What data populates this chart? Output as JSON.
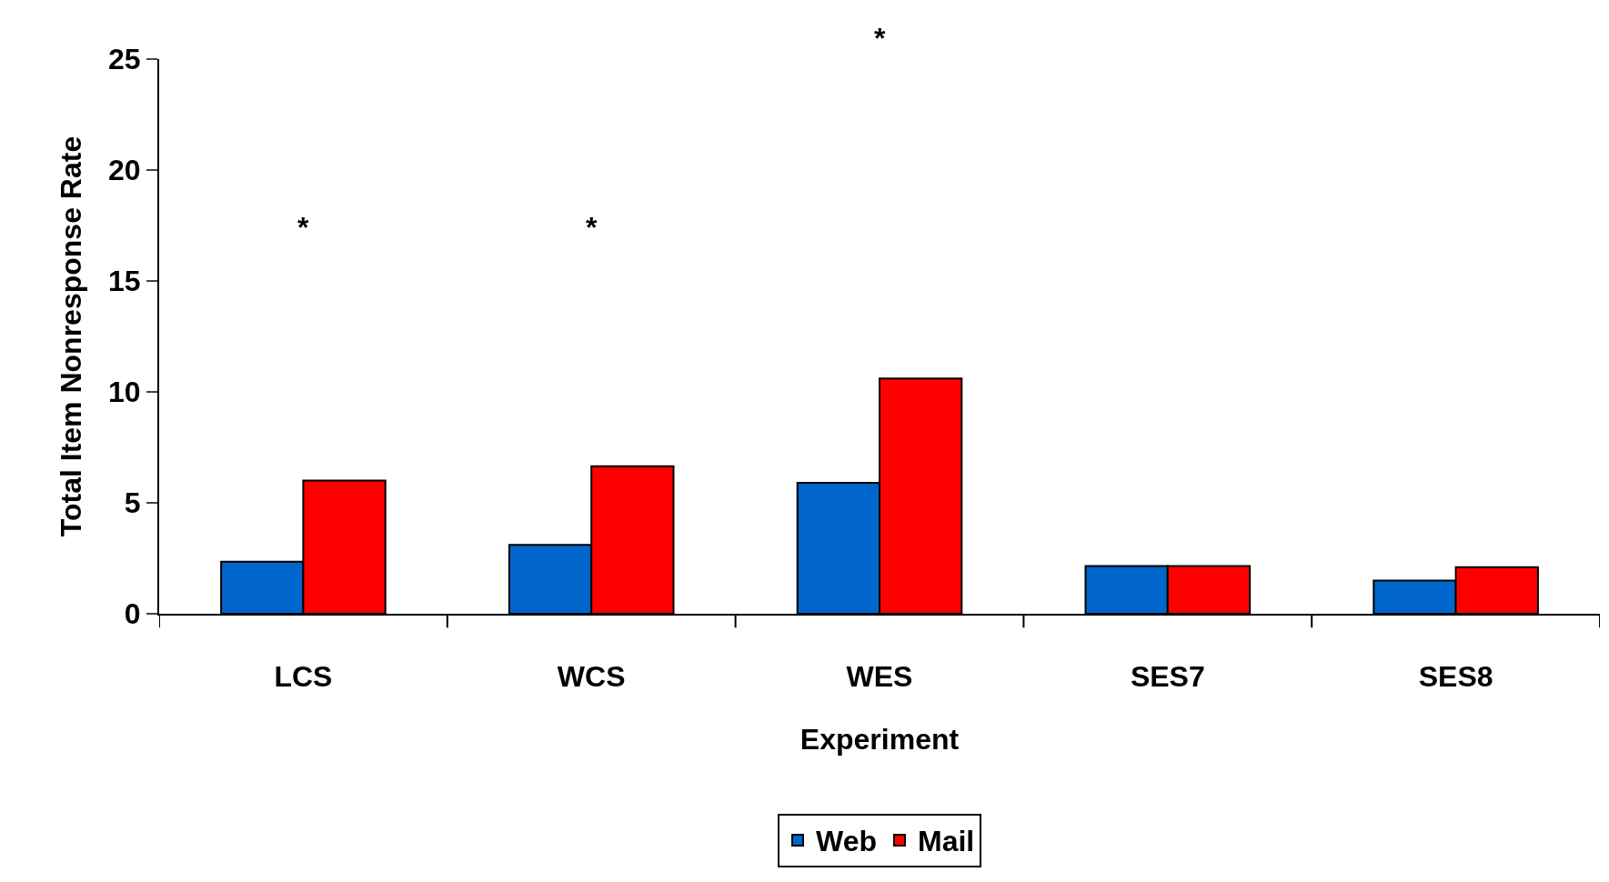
{
  "chart_data": {
    "type": "bar",
    "xlabel": "Experiment",
    "ylabel": "Total Item Nonresponse Rate",
    "categories": [
      "LCS",
      "WCS",
      "WES",
      "SES7",
      "SES8"
    ],
    "series": [
      {
        "name": "Web",
        "color": "#0066cc",
        "values": [
          2.35,
          3.1,
          5.9,
          2.15,
          1.5
        ]
      },
      {
        "name": "Mail",
        "color": "#ff0000",
        "values": [
          6.0,
          6.65,
          10.6,
          2.15,
          2.1
        ]
      }
    ],
    "ylim": [
      0,
      25
    ],
    "yticks": [
      0,
      5,
      10,
      15,
      20,
      25
    ],
    "grid": false,
    "legend": "bottom",
    "annotations": [
      "*",
      "*",
      "*"
    ]
  }
}
